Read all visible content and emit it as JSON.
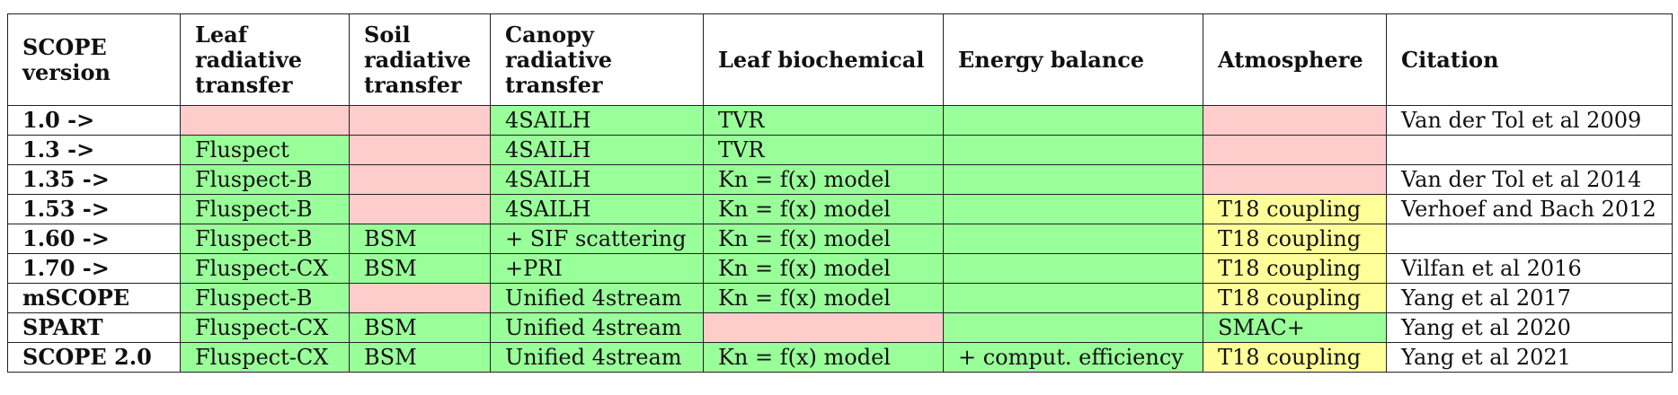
{
  "colors": {
    "green": "#99ff99",
    "red": "#ffcccc",
    "yellow": "#ffff99",
    "white": "#ffffff"
  },
  "headers": [
    "SCOPE version",
    "Leaf radiative transfer",
    "Soil radiative transfer",
    "Canopy radiative transfer",
    "Leaf biochemical",
    "Energy balance",
    "Atmosphere",
    "Citation"
  ],
  "rows": [
    {
      "cells": [
        {
          "text": "1.0 ->",
          "color": "w"
        },
        {
          "text": "",
          "color": "r"
        },
        {
          "text": "",
          "color": "r"
        },
        {
          "text": "4SAILH",
          "color": "g"
        },
        {
          "text": "TVR",
          "color": "g"
        },
        {
          "text": "",
          "color": "g"
        },
        {
          "text": "",
          "color": "r"
        },
        {
          "text": "Van der Tol et al 2009",
          "color": "w"
        }
      ]
    },
    {
      "cells": [
        {
          "text": "1.3 ->",
          "color": "w"
        },
        {
          "text": "Fluspect",
          "color": "g"
        },
        {
          "text": "",
          "color": "r"
        },
        {
          "text": "4SAILH",
          "color": "g"
        },
        {
          "text": "TVR",
          "color": "g"
        },
        {
          "text": "",
          "color": "g"
        },
        {
          "text": "",
          "color": "r"
        },
        {
          "text": "",
          "color": "w"
        }
      ]
    },
    {
      "cells": [
        {
          "text": "1.35 ->",
          "color": "w"
        },
        {
          "text": "Fluspect-B",
          "color": "g"
        },
        {
          "text": "",
          "color": "r"
        },
        {
          "text": "4SAILH",
          "color": "g"
        },
        {
          "text": "Kn = f(x) model",
          "color": "g"
        },
        {
          "text": "",
          "color": "g"
        },
        {
          "text": "",
          "color": "r"
        },
        {
          "text": "Van der Tol et al 2014",
          "color": "w"
        }
      ]
    },
    {
      "cells": [
        {
          "text": "1.53 ->",
          "color": "w"
        },
        {
          "text": "Fluspect-B",
          "color": "g"
        },
        {
          "text": "",
          "color": "r"
        },
        {
          "text": "4SAILH",
          "color": "g"
        },
        {
          "text": "Kn = f(x) model",
          "color": "g"
        },
        {
          "text": "",
          "color": "g"
        },
        {
          "text": "T18 coupling",
          "color": "y"
        },
        {
          "text": "Verhoef and Bach 2012",
          "color": "w"
        }
      ]
    },
    {
      "cells": [
        {
          "text": "1.60 ->",
          "color": "w"
        },
        {
          "text": "Fluspect-B",
          "color": "g"
        },
        {
          "text": "BSM",
          "color": "g"
        },
        {
          "text": "+ SIF scattering",
          "color": "g"
        },
        {
          "text": "Kn = f(x) model",
          "color": "g"
        },
        {
          "text": "",
          "color": "g"
        },
        {
          "text": "T18 coupling",
          "color": "y"
        },
        {
          "text": "",
          "color": "w"
        }
      ]
    },
    {
      "cells": [
        {
          "text": "1.70 ->",
          "color": "w"
        },
        {
          "text": "Fluspect-CX",
          "color": "g"
        },
        {
          "text": "BSM",
          "color": "g"
        },
        {
          "text": "+PRI",
          "color": "g"
        },
        {
          "text": "Kn = f(x) model",
          "color": "g"
        },
        {
          "text": "",
          "color": "g"
        },
        {
          "text": "T18 coupling",
          "color": "y"
        },
        {
          "text": "Vilfan et al 2016",
          "color": "w"
        }
      ]
    },
    {
      "cells": [
        {
          "text": "mSCOPE",
          "color": "w"
        },
        {
          "text": "Fluspect-B",
          "color": "g"
        },
        {
          "text": "",
          "color": "r"
        },
        {
          "text": "Unified 4stream",
          "color": "g"
        },
        {
          "text": "Kn = f(x) model",
          "color": "g"
        },
        {
          "text": "",
          "color": "g"
        },
        {
          "text": "T18 coupling",
          "color": "y"
        },
        {
          "text": "Yang et al 2017",
          "color": "w"
        }
      ]
    },
    {
      "cells": [
        {
          "text": "SPART",
          "color": "w"
        },
        {
          "text": "Fluspect-CX",
          "color": "g"
        },
        {
          "text": "BSM",
          "color": "g"
        },
        {
          "text": "Unified 4stream",
          "color": "g"
        },
        {
          "text": "",
          "color": "r"
        },
        {
          "text": "",
          "color": "g"
        },
        {
          "text": "SMAC+",
          "color": "g"
        },
        {
          "text": "Yang et al 2020",
          "color": "w"
        }
      ]
    },
    {
      "cells": [
        {
          "text": "SCOPE 2.0",
          "color": "w"
        },
        {
          "text": "Fluspect-CX",
          "color": "g"
        },
        {
          "text": "BSM",
          "color": "g"
        },
        {
          "text": "Unified 4stream",
          "color": "g"
        },
        {
          "text": "Kn = f(x) model",
          "color": "g"
        },
        {
          "text": "+ comput. efficiency",
          "color": "g"
        },
        {
          "text": "T18 coupling",
          "color": "y"
        },
        {
          "text": "Yang et al 2021",
          "color": "w"
        }
      ]
    }
  ]
}
